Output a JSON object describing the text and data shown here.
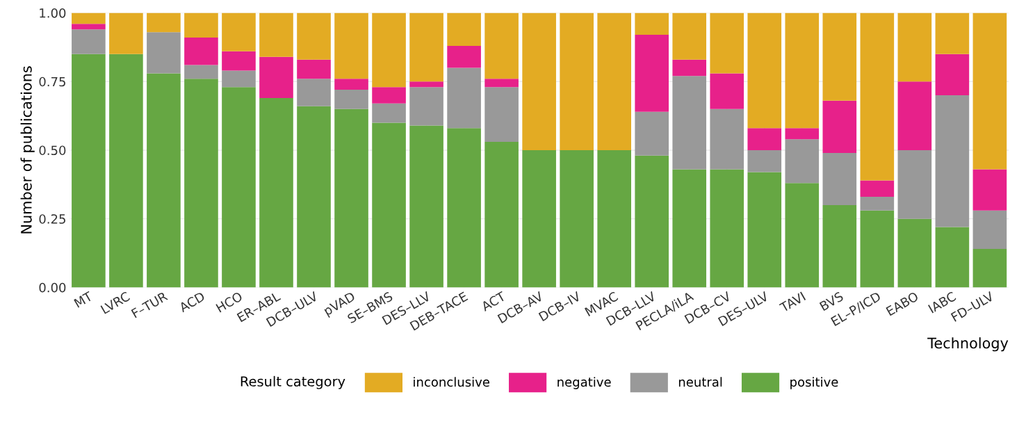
{
  "chart_data": {
    "type": "bar",
    "stacked": true,
    "xlabel": "Technology",
    "ylabel": "Number of publications",
    "legend_title": "Result category",
    "categories": [
      "MT",
      "LVRC",
      "F–TUR",
      "ACD",
      "HCO",
      "ER–ABL",
      "DCB–ULV",
      "pVAD",
      "SE–BMS",
      "DES–LLV",
      "DEB–TACE",
      "ACT",
      "DCB–AV",
      "DCB–IV",
      "MVAC",
      "DCB–LLV",
      "PECLA/iLA",
      "DCB–CV",
      "DES–ULV",
      "TAVI",
      "BVS",
      "EL–P/ICD",
      "EABO",
      "IABC",
      "FD–ULV"
    ],
    "series": [
      {
        "name": "positive",
        "color": "#66a743",
        "values": [
          0.85,
          0.85,
          0.78,
          0.76,
          0.73,
          0.69,
          0.66,
          0.65,
          0.6,
          0.59,
          0.58,
          0.53,
          0.5,
          0.5,
          0.5,
          0.48,
          0.43,
          0.43,
          0.42,
          0.38,
          0.3,
          0.28,
          0.25,
          0.22,
          0.14
        ]
      },
      {
        "name": "neutral",
        "color": "#999999",
        "values": [
          0.09,
          0,
          0.15,
          0.05,
          0.06,
          0,
          0.1,
          0.07,
          0.07,
          0.14,
          0.22,
          0.2,
          0,
          0,
          0,
          0.16,
          0.34,
          0.22,
          0.08,
          0.16,
          0.19,
          0.05,
          0.25,
          0.48,
          0.14
        ]
      },
      {
        "name": "negative",
        "color": "#e7218a",
        "values": [
          0.02,
          0,
          0,
          0.1,
          0.07,
          0.15,
          0.07,
          0.04,
          0.06,
          0.02,
          0.08,
          0.03,
          0,
          0,
          0,
          0.28,
          0.06,
          0.13,
          0.08,
          0.04,
          0.19,
          0.06,
          0.25,
          0.15,
          0.15
        ]
      },
      {
        "name": "inconclusive",
        "color": "#e3ab23",
        "values": [
          0.04,
          0.15,
          0.07,
          0.09,
          0.14,
          0.16,
          0.17,
          0.24,
          0.27,
          0.25,
          0.12,
          0.24,
          0.5,
          0.5,
          0.5,
          0.08,
          0.17,
          0.22,
          0.42,
          0.42,
          0.32,
          0.61,
          0.25,
          0.15,
          0.57
        ]
      }
    ],
    "ylim": [
      0,
      1.0
    ],
    "yticks": [
      {
        "value": 0,
        "label": "0.00"
      },
      {
        "value": 0.25,
        "label": "0.25"
      },
      {
        "value": 0.5,
        "label": "0.50"
      },
      {
        "value": 0.75,
        "label": "0.75"
      },
      {
        "value": 1.0,
        "label": "1.00"
      }
    ],
    "grid": true,
    "legend": "bottom"
  }
}
